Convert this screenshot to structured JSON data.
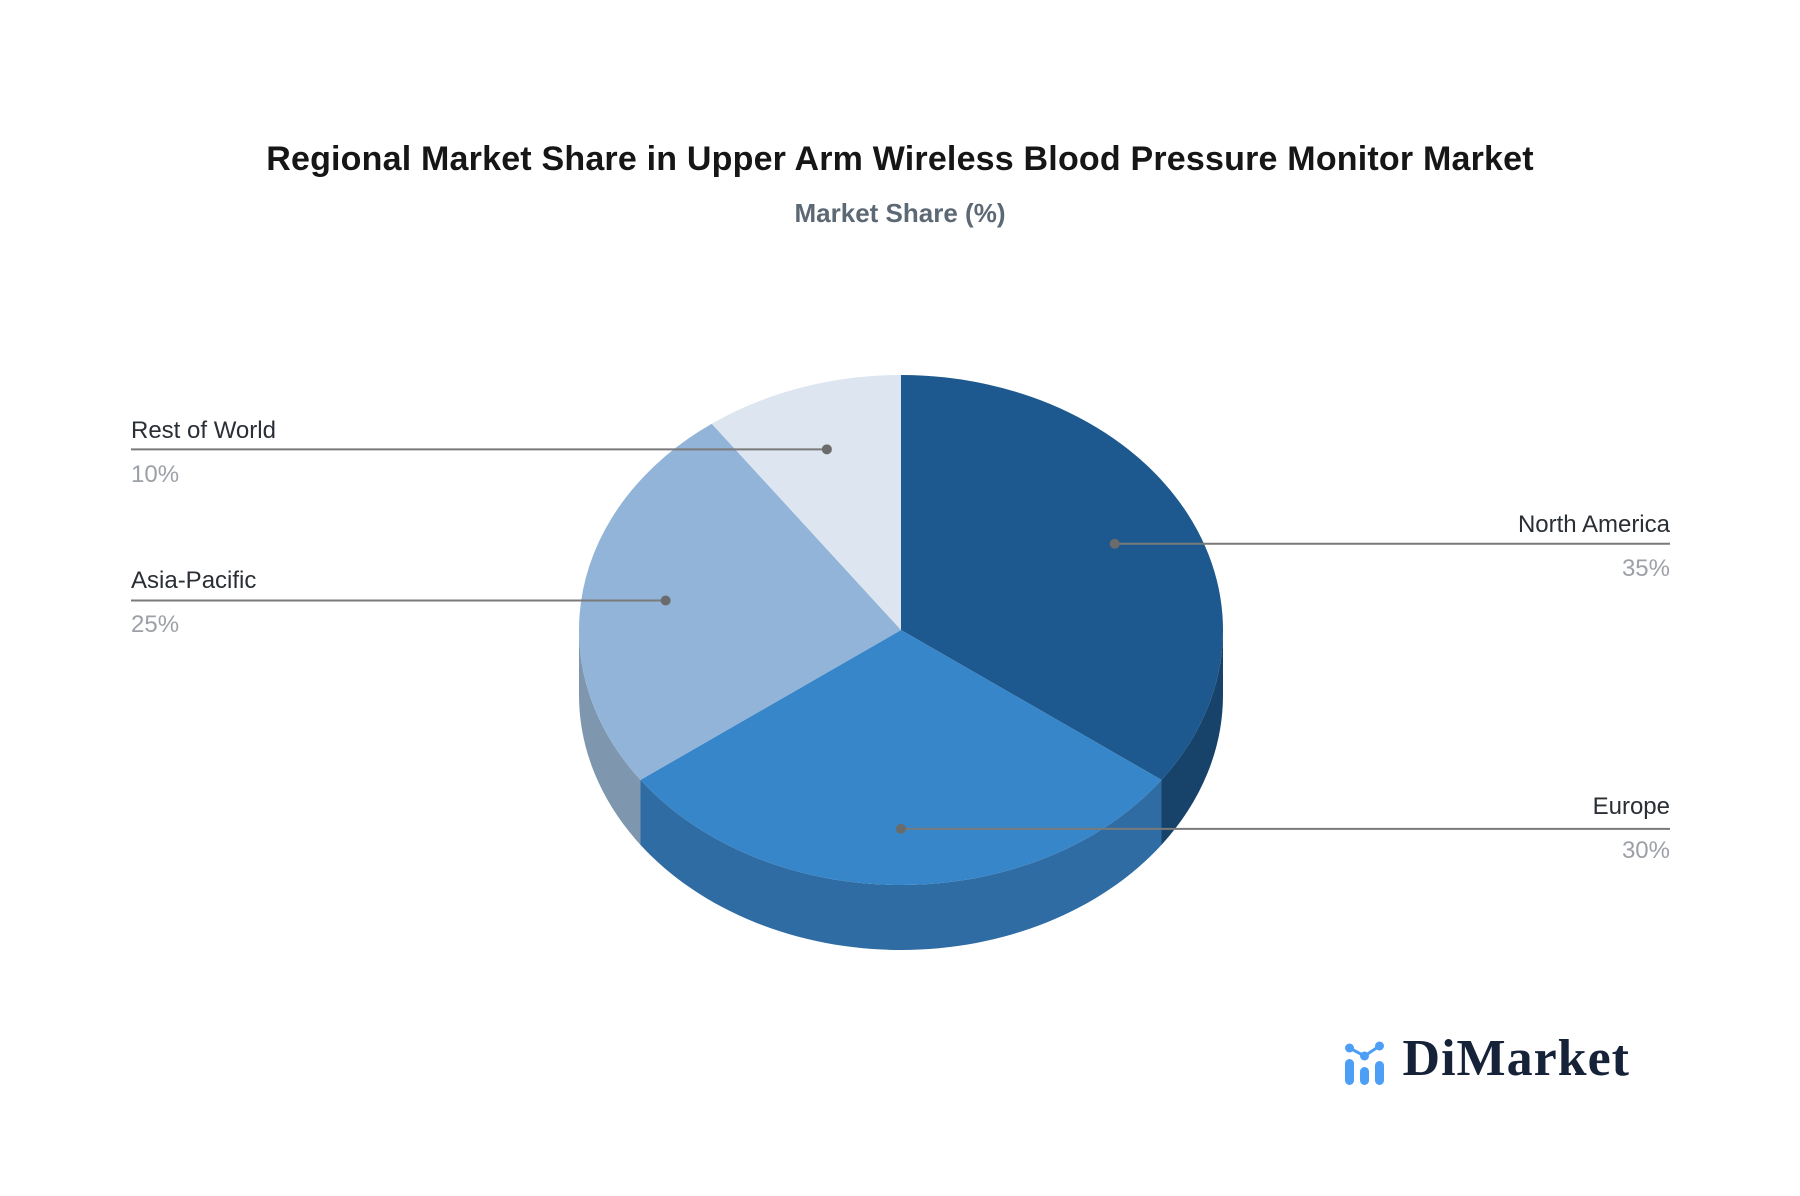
{
  "page": {
    "background": "#ffffff"
  },
  "header": {
    "title": "Regional Market Share in Upper Arm Wireless Blood Pressure Monitor Market",
    "subtitle": "Market Share (%)"
  },
  "chart_data": {
    "type": "pie",
    "style": "3d-pie",
    "title": "Regional Market Share in Upper Arm Wireless Blood Pressure Monitor Market",
    "subtitle": "Market Share (%)",
    "unit": "%",
    "start_angle_deg": 0,
    "direction": "clockwise",
    "legend_position": "none",
    "slices": [
      {
        "label": "North America",
        "value": 35,
        "value_label": "35%",
        "color": "#1D598E",
        "side_color": "#17436A",
        "label_side": "right"
      },
      {
        "label": "Europe",
        "value": 30,
        "value_label": "30%",
        "color": "#3786C9",
        "side_color": "#2E6CA3",
        "label_side": "right"
      },
      {
        "label": "Asia-Pacific",
        "value": 25,
        "value_label": "25%",
        "color": "#92B4D9",
        "side_color": "#7E97AF",
        "label_side": "left"
      },
      {
        "label": "Rest of World",
        "value": 10,
        "value_label": "10%",
        "color": "#DCE5F0",
        "side_color": "#C2CDE0",
        "label_side": "left"
      }
    ],
    "leader_line_color": "#7A7A7A",
    "leader_dot_color": "#6B6B6B",
    "label_name_color": "#2A2E35",
    "label_value_color": "#9CA1A7"
  },
  "branding": {
    "logo_text": "DiMarket",
    "logo_color": "#152238",
    "logo_accent": "#4D9FF5",
    "logo_icon": "bar-line-chart-icon"
  }
}
